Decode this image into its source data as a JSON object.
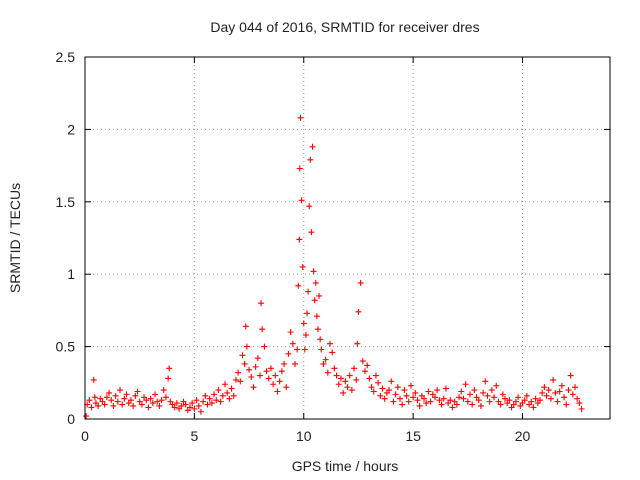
{
  "chart_data": {
    "type": "scatter",
    "title": "Day 044 of 2016, SRMTID for receiver dres",
    "xlabel": "GPS time / hours",
    "ylabel": "SRMTID / TECUs",
    "xlim": [
      0,
      24
    ],
    "ylim": [
      0,
      2.5
    ],
    "x_ticks": [
      "0",
      "5",
      "10",
      "15",
      "20"
    ],
    "x_tick_values": [
      0,
      5,
      10,
      15,
      20
    ],
    "y_ticks": [
      "0",
      "0.5",
      "1",
      "1.5",
      "2",
      "2.5"
    ],
    "y_tick_values": [
      0,
      0.5,
      1,
      1.5,
      2,
      2.5
    ],
    "grid": true,
    "marker": "plus",
    "series": [
      {
        "name": "SRMTID",
        "color": "#ff0000",
        "x": [
          0.05,
          0.1,
          0.2,
          0.3,
          0.4,
          0.45,
          0.5,
          0.6,
          0.7,
          0.8,
          0.9,
          1.0,
          1.1,
          1.2,
          1.3,
          1.4,
          1.5,
          1.6,
          1.7,
          1.8,
          1.9,
          2.0,
          2.1,
          2.2,
          2.3,
          2.4,
          2.5,
          2.6,
          2.7,
          2.8,
          2.9,
          3.0,
          3.1,
          3.2,
          3.3,
          3.4,
          3.5,
          3.6,
          3.7,
          3.8,
          3.85,
          3.9,
          4.0,
          4.1,
          4.2,
          4.3,
          4.4,
          4.5,
          4.6,
          4.7,
          4.8,
          4.9,
          5.0,
          5.1,
          5.2,
          5.3,
          5.4,
          5.5,
          5.6,
          5.7,
          5.8,
          5.9,
          6.0,
          6.1,
          6.2,
          6.3,
          6.4,
          6.5,
          6.6,
          6.7,
          6.8,
          6.9,
          7.0,
          7.1,
          7.2,
          7.3,
          7.35,
          7.4,
          7.5,
          7.6,
          7.7,
          7.8,
          7.9,
          8.0,
          8.05,
          8.1,
          8.2,
          8.3,
          8.4,
          8.5,
          8.6,
          8.7,
          8.8,
          8.9,
          9.0,
          9.1,
          9.2,
          9.3,
          9.4,
          9.5,
          9.6,
          9.7,
          9.75,
          9.8,
          9.82,
          9.85,
          9.9,
          9.95,
          10.0,
          10.05,
          10.1,
          10.15,
          10.2,
          10.25,
          10.3,
          10.35,
          10.4,
          10.45,
          10.5,
          10.55,
          10.6,
          10.65,
          10.7,
          10.75,
          10.8,
          10.9,
          11.0,
          11.1,
          11.2,
          11.3,
          11.4,
          11.5,
          11.6,
          11.7,
          11.8,
          11.9,
          12.0,
          12.1,
          12.2,
          12.3,
          12.4,
          12.45,
          12.5,
          12.6,
          12.7,
          12.8,
          12.9,
          13.0,
          13.1,
          13.2,
          13.3,
          13.4,
          13.5,
          13.6,
          13.7,
          13.8,
          13.9,
          14.0,
          14.1,
          14.2,
          14.3,
          14.4,
          14.5,
          14.6,
          14.7,
          14.8,
          14.9,
          15.0,
          15.1,
          15.2,
          15.3,
          15.4,
          15.5,
          15.6,
          15.7,
          15.8,
          15.9,
          16.0,
          16.1,
          16.2,
          16.3,
          16.4,
          16.5,
          16.6,
          16.7,
          16.8,
          16.9,
          17.0,
          17.1,
          17.2,
          17.3,
          17.4,
          17.5,
          17.6,
          17.7,
          17.8,
          17.9,
          18.0,
          18.1,
          18.2,
          18.3,
          18.4,
          18.5,
          18.6,
          18.7,
          18.8,
          18.9,
          19.0,
          19.1,
          19.2,
          19.3,
          19.4,
          19.5,
          19.6,
          19.7,
          19.8,
          19.9,
          20.0,
          20.1,
          20.2,
          20.3,
          20.4,
          20.5,
          20.6,
          20.7,
          20.8,
          20.9,
          21.0,
          21.1,
          21.2,
          21.3,
          21.4,
          21.5,
          21.6,
          21.7,
          21.8,
          21.9,
          22.0,
          22.1,
          22.2,
          22.3,
          22.4,
          22.5,
          22.6,
          22.7
        ],
        "y": [
          0.02,
          0.1,
          0.13,
          0.08,
          0.27,
          0.15,
          0.11,
          0.09,
          0.14,
          0.12,
          0.1,
          0.15,
          0.18,
          0.13,
          0.09,
          0.16,
          0.12,
          0.2,
          0.1,
          0.14,
          0.17,
          0.11,
          0.13,
          0.09,
          0.16,
          0.19,
          0.12,
          0.1,
          0.15,
          0.13,
          0.08,
          0.14,
          0.11,
          0.17,
          0.12,
          0.09,
          0.13,
          0.2,
          0.15,
          0.28,
          0.35,
          0.12,
          0.1,
          0.08,
          0.11,
          0.07,
          0.09,
          0.12,
          0.1,
          0.06,
          0.08,
          0.11,
          0.07,
          0.13,
          0.09,
          0.05,
          0.12,
          0.16,
          0.1,
          0.14,
          0.11,
          0.17,
          0.13,
          0.2,
          0.12,
          0.16,
          0.24,
          0.18,
          0.14,
          0.21,
          0.16,
          0.27,
          0.32,
          0.26,
          0.44,
          0.38,
          0.64,
          0.5,
          0.34,
          0.29,
          0.22,
          0.36,
          0.42,
          0.3,
          0.8,
          0.62,
          0.5,
          0.33,
          0.28,
          0.35,
          0.24,
          0.3,
          0.19,
          0.26,
          0.33,
          0.38,
          0.22,
          0.45,
          0.6,
          0.52,
          0.38,
          0.48,
          0.92,
          1.24,
          1.73,
          2.08,
          1.51,
          1.05,
          0.66,
          0.48,
          0.58,
          0.73,
          0.88,
          1.47,
          1.79,
          1.29,
          1.88,
          1.02,
          0.82,
          0.94,
          0.71,
          0.62,
          0.85,
          0.55,
          0.48,
          0.38,
          0.41,
          0.32,
          0.52,
          0.46,
          0.35,
          0.3,
          0.24,
          0.28,
          0.18,
          0.26,
          0.22,
          0.3,
          0.2,
          0.35,
          0.27,
          0.52,
          0.74,
          0.94,
          0.4,
          0.33,
          0.37,
          0.28,
          0.22,
          0.19,
          0.3,
          0.25,
          0.16,
          0.21,
          0.14,
          0.18,
          0.2,
          0.26,
          0.12,
          0.17,
          0.22,
          0.14,
          0.1,
          0.2,
          0.16,
          0.12,
          0.23,
          0.15,
          0.18,
          0.13,
          0.09,
          0.16,
          0.14,
          0.11,
          0.19,
          0.12,
          0.17,
          0.15,
          0.2,
          0.13,
          0.1,
          0.14,
          0.21,
          0.11,
          0.13,
          0.08,
          0.12,
          0.1,
          0.15,
          0.19,
          0.14,
          0.24,
          0.12,
          0.17,
          0.1,
          0.2,
          0.15,
          0.13,
          0.09,
          0.18,
          0.26,
          0.16,
          0.12,
          0.2,
          0.15,
          0.23,
          0.12,
          0.1,
          0.17,
          0.14,
          0.11,
          0.13,
          0.08,
          0.1,
          0.12,
          0.15,
          0.09,
          0.11,
          0.13,
          0.16,
          0.1,
          0.12,
          0.08,
          0.14,
          0.11,
          0.13,
          0.18,
          0.22,
          0.16,
          0.2,
          0.14,
          0.27,
          0.18,
          0.12,
          0.19,
          0.23,
          0.15,
          0.1,
          0.2,
          0.3,
          0.17,
          0.22,
          0.14,
          0.11,
          0.07
        ]
      }
    ]
  }
}
